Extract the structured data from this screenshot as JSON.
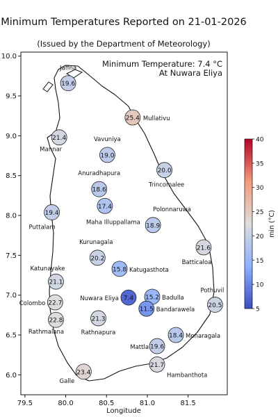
{
  "title": "Minimum Temperatures Reported on 21-01-2026",
  "subtitle": "(Issued by the Department of Meteorology)",
  "annotation": {
    "line1": "Minimum Temperature: 7.4 °C",
    "line2": "At Nuwara Eliya"
  },
  "colorbar": {
    "label": "min (°C)",
    "ticks": [
      5,
      10,
      15,
      20,
      25,
      30,
      35,
      40
    ],
    "range": [
      5,
      40
    ],
    "colormap": "coolwarm"
  },
  "chart_data": {
    "type": "scatter",
    "xlabel": "Longitude",
    "ylabel": "",
    "xlim": [
      79.45,
      81.98
    ],
    "ylim": [
      5.75,
      10.05
    ],
    "xticks": [
      "79.5",
      "80.0",
      "80.5",
      "81.0",
      "81.5"
    ],
    "yticks": [
      "6.0",
      "6.5",
      "7.0",
      "7.5",
      "8.0",
      "8.5",
      "9.0",
      "9.5",
      "10.0"
    ],
    "stations": [
      {
        "name": "Jaffna",
        "lon": 80.03,
        "lat": 9.66,
        "value": 19.6
      },
      {
        "name": "Mullativu",
        "lon": 80.82,
        "lat": 9.23,
        "value": 25.4
      },
      {
        "name": "Mannar",
        "lon": 79.92,
        "lat": 8.98,
        "value": 21.4
      },
      {
        "name": "Vavuniya",
        "lon": 80.51,
        "lat": 8.76,
        "value": 19.0
      },
      {
        "name": "Trincomalee",
        "lon": 81.21,
        "lat": 8.57,
        "value": 20.0
      },
      {
        "name": "Anuradhapura",
        "lon": 80.41,
        "lat": 8.33,
        "value": 18.6
      },
      {
        "name": "Maha Illuppallama",
        "lon": 80.48,
        "lat": 8.12,
        "value": 17.4
      },
      {
        "name": "Puttalam",
        "lon": 79.83,
        "lat": 8.04,
        "value": 19.4
      },
      {
        "name": "Polonnaruwa",
        "lon": 81.07,
        "lat": 7.88,
        "value": 18.9
      },
      {
        "name": "Batticaloa",
        "lon": 81.69,
        "lat": 7.6,
        "value": 21.6
      },
      {
        "name": "Kurunagala",
        "lon": 80.39,
        "lat": 7.47,
        "value": 20.2
      },
      {
        "name": "Katugasthota",
        "lon": 80.66,
        "lat": 7.33,
        "value": 15.8
      },
      {
        "name": "Katunayake",
        "lon": 79.88,
        "lat": 7.17,
        "value": 21.1
      },
      {
        "name": "Nuwara Eliya",
        "lon": 80.77,
        "lat": 6.97,
        "value": 7.4
      },
      {
        "name": "Badulla",
        "lon": 81.06,
        "lat": 6.98,
        "value": 15.2
      },
      {
        "name": "Colombo",
        "lon": 79.87,
        "lat": 6.91,
        "value": 22.7
      },
      {
        "name": "Pothuvil",
        "lon": 81.83,
        "lat": 6.88,
        "value": 20.5
      },
      {
        "name": "Bandarawela",
        "lon": 80.99,
        "lat": 6.83,
        "value": 11.5
      },
      {
        "name": "Rathnapura",
        "lon": 80.4,
        "lat": 6.71,
        "value": 21.3
      },
      {
        "name": "Rathmalana",
        "lon": 79.88,
        "lat": 6.69,
        "value": 22.8
      },
      {
        "name": "Monaragala",
        "lon": 81.35,
        "lat": 6.5,
        "value": 18.4
      },
      {
        "name": "Mattla",
        "lon": 81.12,
        "lat": 6.36,
        "value": 19.6
      },
      {
        "name": "Hambanthota",
        "lon": 81.12,
        "lat": 6.13,
        "value": 21.7
      },
      {
        "name": "Galle",
        "lon": 80.22,
        "lat": 6.04,
        "value": 23.4
      }
    ]
  }
}
